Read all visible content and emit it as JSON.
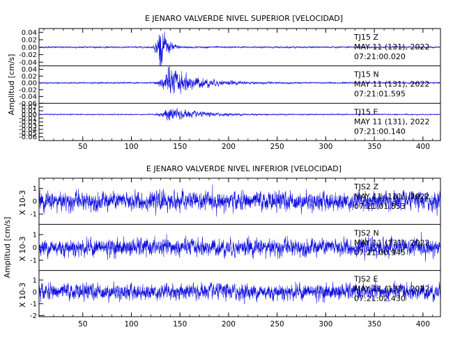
{
  "chart_data": [
    {
      "type": "line",
      "title": "E JENARO VALVERDE NIVEL SUPERIOR [VELOCIDAD]",
      "ylabel": "Amplitud [cm/s]",
      "xlabel": "",
      "xlim": [
        5,
        418
      ],
      "xticks": [
        "50",
        "100",
        "150",
        "200",
        "250",
        "300",
        "350",
        "400"
      ],
      "series_color": "#1010e0",
      "panels": [
        {
          "name": "TJ15 Z",
          "yticks": [
            "0.04",
            "0.02",
            "0.00",
            "-0.02",
            "-0.04"
          ],
          "ylim": [
            -0.05,
            0.05
          ],
          "annotation": [
            "TJ15   Z",
            "MAY 11 (131), 2022",
            "07:21:00.020"
          ],
          "waveform": {
            "noise": 0.0012,
            "onset": 122,
            "peak_time": 128,
            "peak_amp": 0.042,
            "decay": 7,
            "coda_amp": 0.0
          }
        },
        {
          "name": "TJ15 N",
          "yticks": [
            "0.04",
            "0.02",
            "0.00",
            "-0.02",
            "-0.04",
            "-0.06"
          ],
          "ylim": [
            -0.06,
            0.05
          ],
          "annotation": [
            "TJ15   N",
            "MAY 11 (131), 2022",
            "07:21:01.595"
          ],
          "waveform": {
            "noise": 0.0012,
            "onset": 122,
            "peak_time": 135,
            "peak_amp": 0.03,
            "decay": 28,
            "coda_amp": 0.0
          }
        },
        {
          "name": "TJ15 E",
          "yticks": [
            "0.02",
            "0.01",
            "0.00",
            "-0.01",
            "-0.02",
            "-0.03",
            "-0.04",
            "-0.05",
            "-0.06"
          ],
          "ylim": [
            -0.07,
            0.03
          ],
          "annotation": [
            "TJ15   E",
            "MAY 11 (131), 2022",
            "07:21:00.140"
          ],
          "waveform": {
            "noise": 0.0008,
            "onset": 122,
            "peak_time": 135,
            "peak_amp": 0.012,
            "decay": 30,
            "coda_amp": 0.0
          }
        }
      ]
    },
    {
      "type": "line",
      "title": "E JENARO VALVERDE NIVEL INFERIOR [VELOCIDAD]",
      "ylabel": "Amplitud [cm/s]",
      "xlabel": "",
      "xlim": [
        5,
        418
      ],
      "xticks": [
        "50",
        "100",
        "150",
        "200",
        "250",
        "300",
        "350",
        "400"
      ],
      "series_color": "#1010e0",
      "panels": [
        {
          "name": "TJS2 Z",
          "scale_label": "X 10-3",
          "yticks": [
            "1",
            "0",
            "-1"
          ],
          "ylim": [
            -1.8,
            1.8
          ],
          "annotation": [
            "TJS2   Z",
            "MAY 11 (131), 2022",
            "07:21:01.853"
          ],
          "waveform": {
            "noise": 0.45,
            "onset": 0,
            "peak_time": 0,
            "peak_amp": 0,
            "decay": 1,
            "coda_amp": 0
          }
        },
        {
          "name": "TJS2 N",
          "scale_label": "X 10-3",
          "yticks": [
            "1",
            "0",
            "-1"
          ],
          "ylim": [
            -1.8,
            1.8
          ],
          "annotation": [
            "TJS2   N",
            "MAY 11 (131), 2022",
            "07:21:00.945"
          ],
          "waveform": {
            "noise": 0.42,
            "onset": 0,
            "peak_time": 0,
            "peak_amp": 0,
            "decay": 1,
            "coda_amp": 0
          }
        },
        {
          "name": "TJS2 E",
          "scale_label": "X 10-3",
          "yticks": [
            "1",
            "0",
            "-1",
            "-2"
          ],
          "ylim": [
            -2.1,
            1.8
          ],
          "annotation": [
            "TJS2   E",
            "MAY 11 (131), 2022",
            "07:21:02.430"
          ],
          "waveform": {
            "noise": 0.42,
            "onset": 0,
            "peak_time": 0,
            "peak_amp": 0,
            "decay": 1,
            "coda_amp": 0
          }
        }
      ]
    }
  ]
}
